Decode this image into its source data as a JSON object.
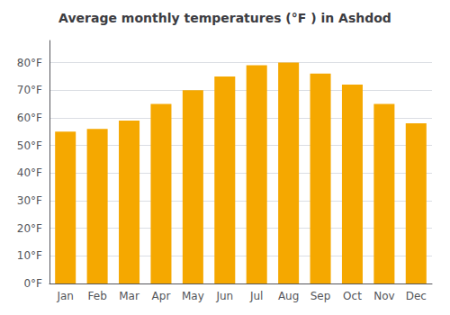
{
  "chart_data": {
    "type": "bar",
    "title": "Average monthly temperatures (°F ) in Ashdod",
    "categories": [
      "Jan",
      "Feb",
      "Mar",
      "Apr",
      "May",
      "Jun",
      "Jul",
      "Aug",
      "Sep",
      "Oct",
      "Nov",
      "Dec"
    ],
    "values": [
      55,
      56,
      59,
      65,
      70,
      75,
      79,
      80,
      76,
      72,
      65,
      58
    ],
    "color": "#F5A800",
    "ylim": [
      0,
      88
    ],
    "yticks": [
      {
        "value": 0,
        "label": "0°F"
      },
      {
        "value": 10,
        "label": "10°F"
      },
      {
        "value": 20,
        "label": "20°F"
      },
      {
        "value": 30,
        "label": "30°F"
      },
      {
        "value": 40,
        "label": "40°F"
      },
      {
        "value": 50,
        "label": "50°F"
      },
      {
        "value": 60,
        "label": "60°F"
      },
      {
        "value": 70,
        "label": "70°F"
      },
      {
        "value": 80,
        "label": "80°F"
      }
    ],
    "grid": true
  }
}
